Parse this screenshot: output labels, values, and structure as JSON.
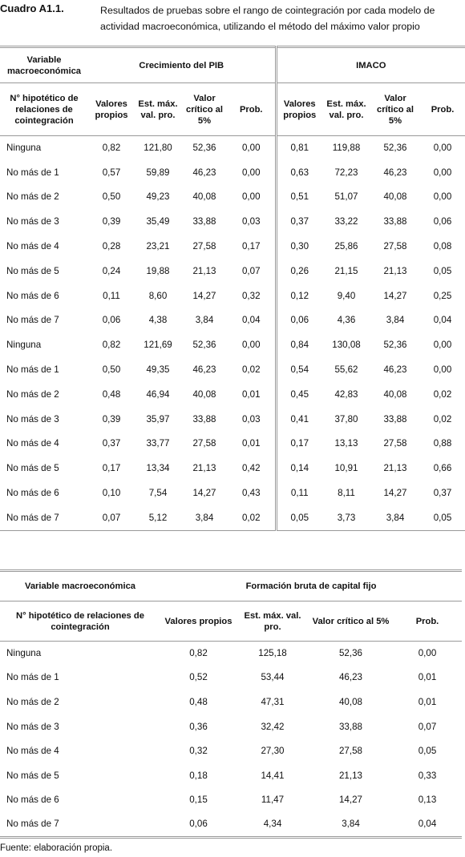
{
  "caption": {
    "label": "Cuadro A1.1.",
    "title": "Resultados de pruebas sobre el rango de cointegración por cada modelo de actividad macroeconómica, utilizando el método del máximo valor propio"
  },
  "table1": {
    "corner": "Variable macroeconómica",
    "groups": [
      "Crecimiento del PIB",
      "IMACO"
    ],
    "row_header": "N° hipotético de relaciones de cointegración",
    "columns": [
      "Valores propios",
      "Est. máx. val. pro.",
      "Valor crítico al 5%",
      "Prob."
    ],
    "rows": [
      [
        "Ninguna",
        "0,82",
        "121,80",
        "52,36",
        "0,00",
        "0,81",
        "119,88",
        "52,36",
        "0,00"
      ],
      [
        "No más de 1",
        "0,57",
        "59,89",
        "46,23",
        "0,00",
        "0,63",
        "72,23",
        "46,23",
        "0,00"
      ],
      [
        "No más de 2",
        "0,50",
        "49,23",
        "40,08",
        "0,00",
        "0,51",
        "51,07",
        "40,08",
        "0,00"
      ],
      [
        "No más de 3",
        "0,39",
        "35,49",
        "33,88",
        "0,03",
        "0,37",
        "33,22",
        "33,88",
        "0,06"
      ],
      [
        "No más de 4",
        "0,28",
        "23,21",
        "27,58",
        "0,17",
        "0,30",
        "25,86",
        "27,58",
        "0,08"
      ],
      [
        "No más de 5",
        "0,24",
        "19,88",
        "21,13",
        "0,07",
        "0,26",
        "21,15",
        "21,13",
        "0,05"
      ],
      [
        "No más de 6",
        "0,11",
        "8,60",
        "14,27",
        "0,32",
        "0,12",
        "9,40",
        "14,27",
        "0,25"
      ],
      [
        "No más de 7",
        "0,06",
        "4,38",
        "3,84",
        "0,04",
        "0,06",
        "4,36",
        "3,84",
        "0,04"
      ],
      [
        "Ninguna",
        "0,82",
        "121,69",
        "52,36",
        "0,00",
        "0,84",
        "130,08",
        "52,36",
        "0,00"
      ],
      [
        "No más de 1",
        "0,50",
        "49,35",
        "46,23",
        "0,02",
        "0,54",
        "55,62",
        "46,23",
        "0,00"
      ],
      [
        "No más de 2",
        "0,48",
        "46,94",
        "40,08",
        "0,01",
        "0,45",
        "42,83",
        "40,08",
        "0,02"
      ],
      [
        "No más de 3",
        "0,39",
        "35,97",
        "33,88",
        "0,03",
        "0,41",
        "37,80",
        "33,88",
        "0,02"
      ],
      [
        "No más de 4",
        "0,37",
        "33,77",
        "27,58",
        "0,01",
        "0,17",
        "13,13",
        "27,58",
        "0,88"
      ],
      [
        "No más de 5",
        "0,17",
        "13,34",
        "21,13",
        "0,42",
        "0,14",
        "10,91",
        "21,13",
        "0,66"
      ],
      [
        "No más de 6",
        "0,10",
        "7,54",
        "14,27",
        "0,43",
        "0,11",
        "8,11",
        "14,27",
        "0,37"
      ],
      [
        "No más de 7",
        "0,07",
        "5,12",
        "3,84",
        "0,02",
        "0,05",
        "3,73",
        "3,84",
        "0,05"
      ]
    ]
  },
  "table2": {
    "corner": "Variable macroeconómica",
    "group": "Formación bruta de capital fijo",
    "row_header": "N° hipotético de relaciones de cointegración",
    "columns": [
      "Valores propios",
      "Est. máx. val. pro.",
      "Valor crítico al 5%",
      "Prob."
    ],
    "rows": [
      [
        "Ninguna",
        "0,82",
        "125,18",
        "52,36",
        "0,00"
      ],
      [
        "No más de 1",
        "0,52",
        "53,44",
        "46,23",
        "0,01"
      ],
      [
        "No más de 2",
        "0,48",
        "47,31",
        "40,08",
        "0,01"
      ],
      [
        "No más de 3",
        "0,36",
        "32,42",
        "33,88",
        "0,07"
      ],
      [
        "No más de 4",
        "0,32",
        "27,30",
        "27,58",
        "0,05"
      ],
      [
        "No más de 5",
        "0,18",
        "14,41",
        "21,13",
        "0,33"
      ],
      [
        "No más de 6",
        "0,15",
        "11,47",
        "14,27",
        "0,13"
      ],
      [
        "No más de 7",
        "0,06",
        "4,34",
        "3,84",
        "0,04"
      ]
    ]
  },
  "source": "Fuente: elaboración propia."
}
